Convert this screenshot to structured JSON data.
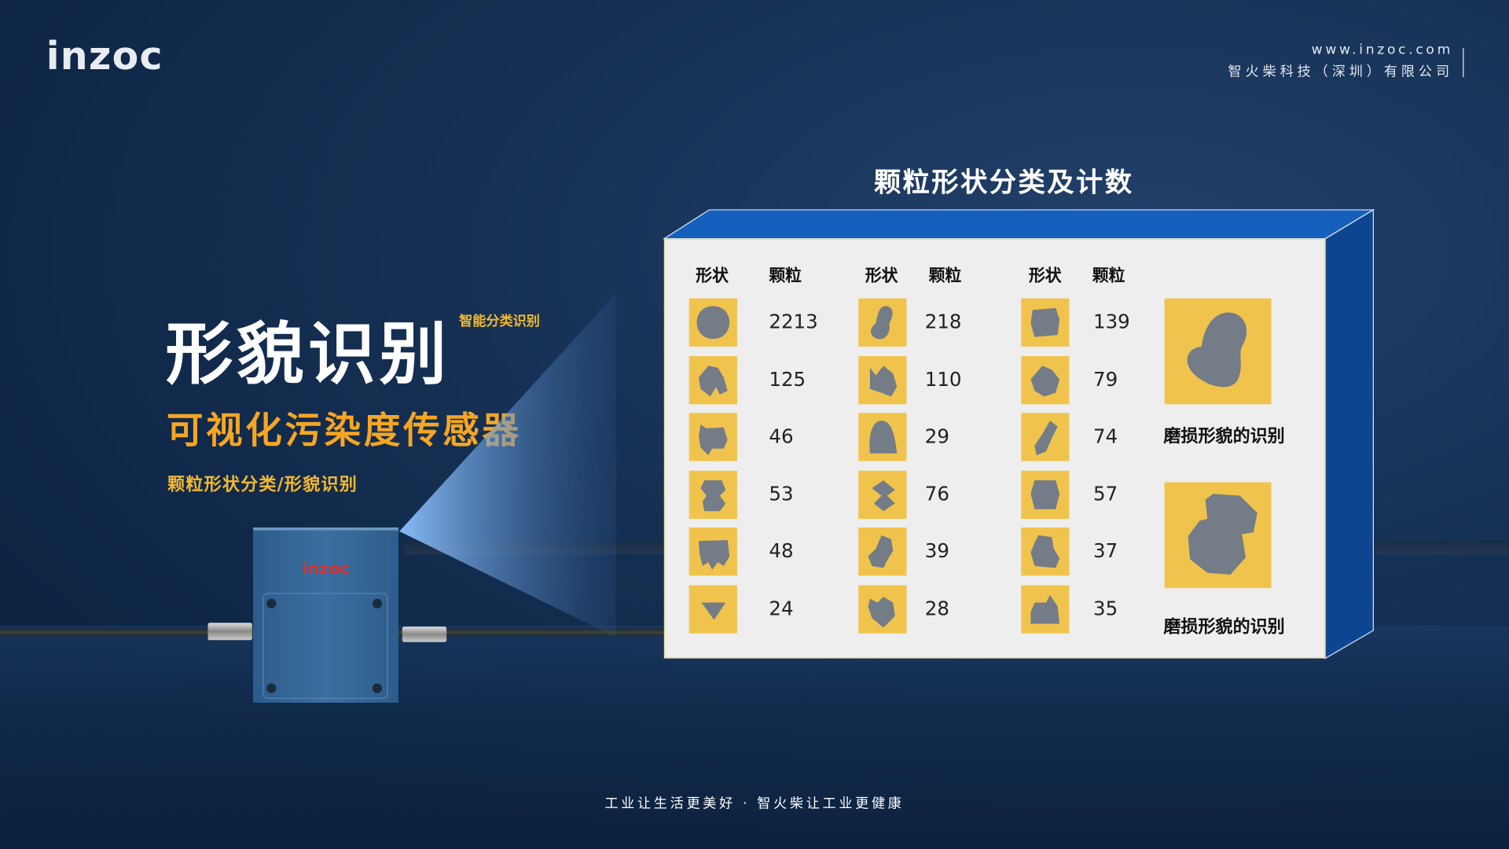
{
  "brand": {
    "logo": "inzoc",
    "website": "www.inzoc.com",
    "company": "智火柴科技（深圳）有限公司"
  },
  "hero": {
    "title": "形貌识别",
    "tag": "智能分类识别",
    "subtitle": "可视化污染度传感器",
    "feature": "颗粒形状分类/形貌识别"
  },
  "device": {
    "logo": "inzoc"
  },
  "panel": {
    "title": "颗粒形状分类及计数",
    "headers": [
      "形状",
      "颗粒",
      "形状",
      "颗粒",
      "形状",
      "颗粒"
    ],
    "columns": [
      {
        "rows": [
          {
            "shape": "circle-particle",
            "count": "2213"
          },
          {
            "shape": "irregular-particle",
            "count": "125"
          },
          {
            "shape": "flake-particle",
            "count": "46"
          },
          {
            "shape": "lobed-particle",
            "count": "53"
          },
          {
            "shape": "jagged-particle",
            "count": "48"
          },
          {
            "shape": "triangle-particle",
            "count": "24"
          }
        ]
      },
      {
        "rows": [
          {
            "shape": "peanut-particle",
            "count": "218"
          },
          {
            "shape": "notched-particle",
            "count": "110"
          },
          {
            "shape": "dome-particle",
            "count": "29"
          },
          {
            "shape": "double-diamond-particle",
            "count": "76"
          },
          {
            "shape": "cluster-particle",
            "count": "39"
          },
          {
            "shape": "heart-particle",
            "count": "28"
          }
        ]
      },
      {
        "rows": [
          {
            "shape": "rounded-square-particle",
            "count": "139"
          },
          {
            "shape": "polygon-particle",
            "count": "79"
          },
          {
            "shape": "elongated-particle",
            "count": "74"
          },
          {
            "shape": "barrel-particle",
            "count": "57"
          },
          {
            "shape": "tall-irregular-particle",
            "count": "37"
          },
          {
            "shape": "mound-particle",
            "count": "35"
          }
        ]
      }
    ],
    "wear": [
      {
        "label": "磨损形貌的识别",
        "shape": "wear-particle-1"
      },
      {
        "label": "磨损形貌的识别",
        "shape": "wear-particle-2"
      }
    ],
    "colors": {
      "thumb": "#f0c44c",
      "particle": "#747c88",
      "top": "#1560bd",
      "side": "#0e4590"
    }
  },
  "footer": "工业让生活更美好 · 智火柴让工业更健康"
}
